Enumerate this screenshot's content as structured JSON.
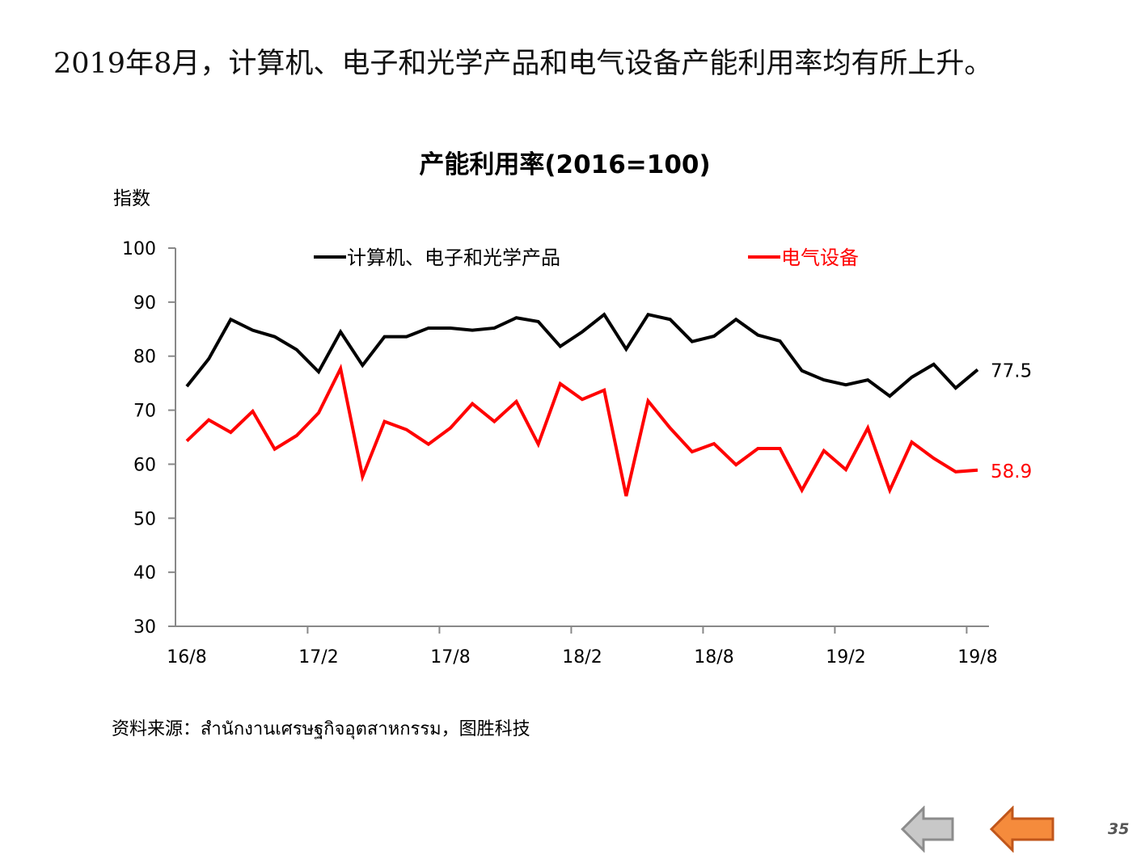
{
  "slide": {
    "headline": "2019年8月，计算机、电子和光学产品和电气设备产能利用率均有所上升。",
    "source": "资料来源：สำนักงานเศรษฐกิจอุตสาหกรรม，图胜科技",
    "page_number": "35",
    "nav": {
      "back_icon": "gray-left-arrow-icon",
      "return_icon": "orange-left-arrow-icon"
    }
  },
  "chart_data": {
    "type": "line",
    "title": "产能利用率(2016=100)",
    "ylabel": "指数",
    "xlabel": "",
    "ylim": [
      30,
      100
    ],
    "yticks": [
      30,
      40,
      50,
      60,
      70,
      80,
      90,
      100
    ],
    "xtick_labels": [
      "16/8",
      "17/2",
      "17/8",
      "18/2",
      "18/8",
      "19/2",
      "19/8"
    ],
    "legend_position": "top",
    "grid": false,
    "x": [
      "16/8",
      "16/9",
      "16/10",
      "16/11",
      "16/12",
      "17/1",
      "17/2",
      "17/3",
      "17/4",
      "17/5",
      "17/6",
      "17/7",
      "17/8",
      "17/9",
      "17/10",
      "17/11",
      "17/12",
      "18/1",
      "18/2",
      "18/3",
      "18/4",
      "18/5",
      "18/6",
      "18/7",
      "18/8",
      "18/9",
      "18/10",
      "18/11",
      "18/12",
      "19/1",
      "19/2",
      "19/3",
      "19/4",
      "19/5",
      "19/6",
      "19/7",
      "19/8"
    ],
    "series": [
      {
        "name": "计算机、电子和光学产品",
        "color": "#000000",
        "end_label": "77.5",
        "values": [
          74.4,
          79.5,
          86.8,
          84.8,
          83.6,
          81.2,
          77.1,
          84.5,
          78.3,
          83.6,
          83.6,
          85.2,
          85.2,
          84.8,
          85.2,
          87.1,
          86.4,
          81.8,
          84.5,
          87.7,
          81.3,
          87.7,
          86.8,
          82.7,
          83.7,
          86.8,
          83.9,
          82.8,
          77.3,
          75.6,
          74.7,
          75.6,
          72.6,
          76.1,
          78.5,
          74.1,
          77.5
        ]
      },
      {
        "name": "电气设备",
        "color": "#ff0000",
        "end_label": "58.9",
        "values": [
          64.3,
          68.2,
          65.9,
          69.8,
          62.8,
          65.3,
          69.5,
          77.7,
          57.7,
          67.9,
          66.4,
          63.7,
          66.7,
          71.2,
          67.9,
          71.6,
          63.7,
          74.9,
          72.0,
          73.7,
          54.1,
          71.7,
          66.7,
          62.3,
          63.8,
          59.9,
          62.9,
          62.9,
          55.2,
          62.5,
          59.0,
          66.7,
          55.2,
          64.1,
          61.1,
          58.6,
          58.9
        ]
      }
    ]
  }
}
